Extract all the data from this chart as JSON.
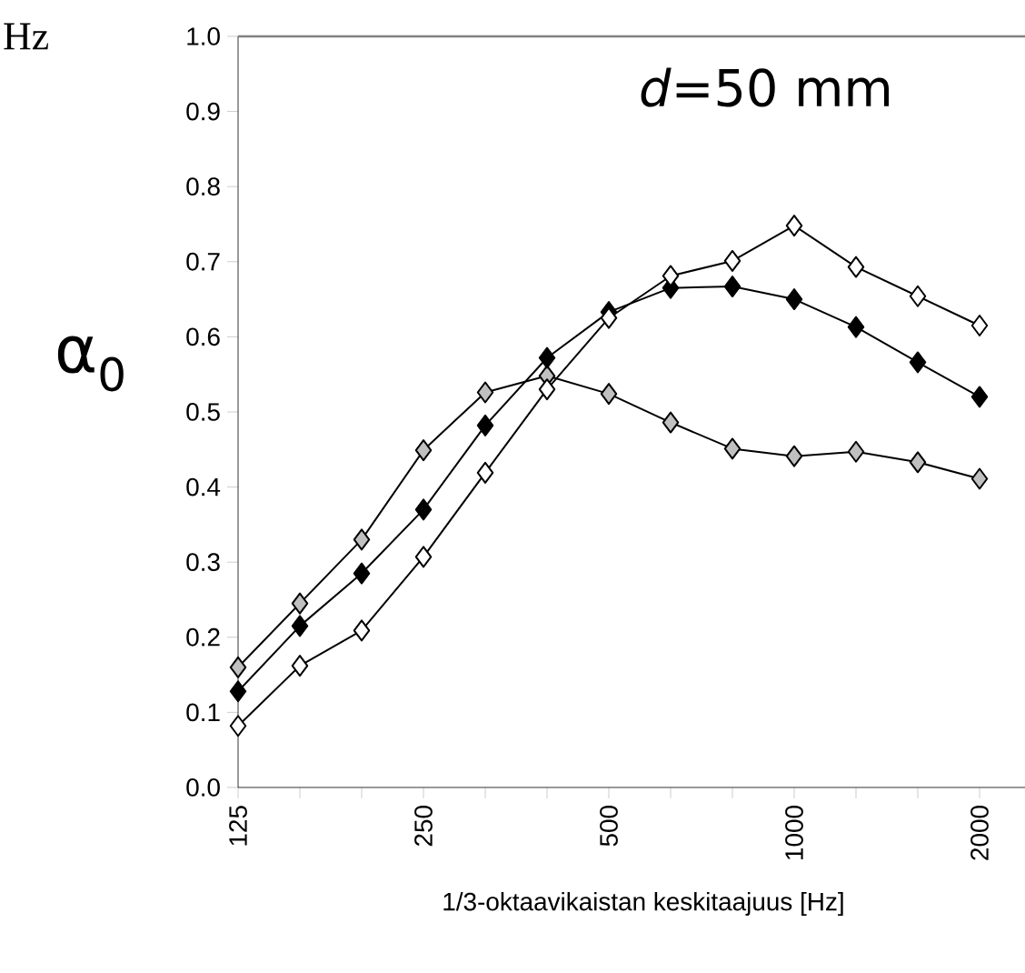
{
  "chart_data": {
    "type": "line",
    "categories": [
      "125",
      null,
      null,
      "250",
      null,
      null,
      "500",
      null,
      null,
      "1000",
      null,
      null,
      "2000"
    ],
    "series": [
      {
        "color": "#c0c0c0",
        "values": [
          0.16,
          0.245,
          0.33,
          0.449,
          0.526,
          0.548,
          0.524,
          0.486,
          0.451,
          0.441,
          0.447,
          0.433,
          0.411
        ]
      },
      {
        "color": "#000000",
        "values": [
          0.128,
          0.215,
          0.285,
          0.37,
          0.482,
          0.572,
          0.633,
          0.665,
          0.667,
          0.65,
          0.613,
          0.566,
          0.52
        ]
      },
      {
        "color": "#ffffff",
        "values": [
          0.082,
          0.162,
          0.209,
          0.307,
          0.419,
          0.53,
          0.625,
          0.681,
          0.701,
          0.748,
          0.693,
          0.654,
          0.615
        ]
      }
    ],
    "ylim": [
      0,
      1
    ],
    "yticks": [
      {
        "value": 0,
        "label": "0.0"
      },
      0.1,
      0.2,
      0.3,
      0.4,
      0.5,
      0.6,
      0.7,
      0.8,
      0.9,
      {
        "value": 1,
        "label": "1.0"
      }
    ],
    "xlabel": "1/3-oktaavikaistan keskitaajuus [Hz]",
    "ylabel": "α$_{0}$",
    "annotations": [
      "*d*=50 mm",
      "Hz"
    ],
    "marker": "diamond",
    "line_style": "solid"
  }
}
